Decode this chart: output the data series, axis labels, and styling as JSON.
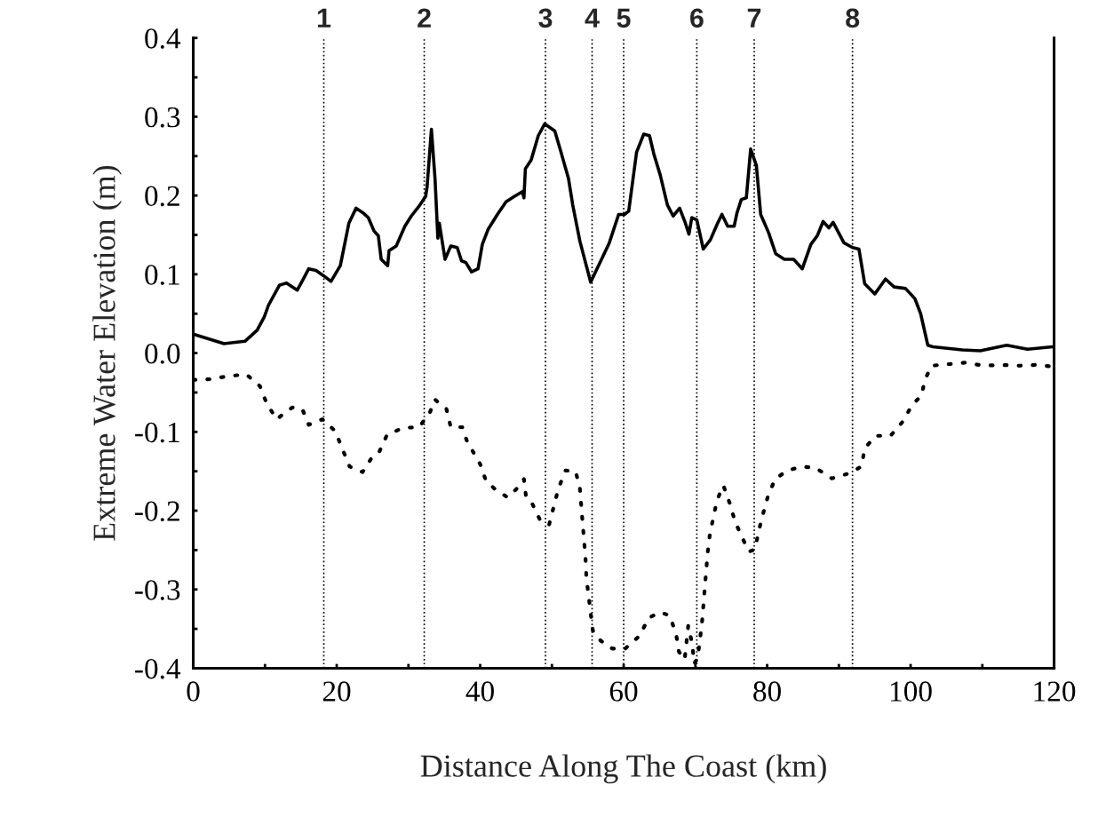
{
  "chart_data": {
    "type": "line",
    "xlabel": "Distance Along The Coast (km)",
    "ylabel": "Extreme Water Elevation (m)",
    "xlim": [
      0,
      120
    ],
    "ylim": [
      -0.4,
      0.4
    ],
    "xticks": [
      0,
      {
        "value": 10,
        "label": null
      },
      20,
      {
        "value": 30,
        "label": null
      },
      40,
      {
        "value": 50,
        "label": null
      },
      60,
      {
        "value": 70,
        "label": null
      },
      80,
      {
        "value": 90,
        "label": null
      },
      100,
      {
        "value": 110,
        "label": null
      },
      120
    ],
    "yticks": [
      {
        "value": -0.4,
        "label": "-0.4"
      },
      {
        "value": -0.35,
        "label": null
      },
      {
        "value": -0.3,
        "label": "-0.3"
      },
      {
        "value": -0.25,
        "label": null
      },
      {
        "value": -0.2,
        "label": "-0.2"
      },
      {
        "value": -0.15,
        "label": null
      },
      {
        "value": -0.1,
        "label": "-0.1"
      },
      {
        "value": -0.05,
        "label": null
      },
      {
        "value": 0.0,
        "label": "0.0"
      },
      {
        "value": 0.05,
        "label": null
      },
      {
        "value": 0.1,
        "label": "0.1"
      },
      {
        "value": 0.15,
        "label": null
      },
      {
        "value": 0.2,
        "label": "0.2"
      },
      {
        "value": 0.25,
        "label": null
      },
      {
        "value": 0.3,
        "label": "0.3"
      },
      {
        "value": 0.35,
        "label": null
      },
      {
        "value": 0.4,
        "label": "0.4"
      }
    ],
    "grid": false,
    "legend": false,
    "series": [
      {
        "color": "#000000",
        "line_style": "solid",
        "x": [
          0,
          4.3,
          7.2,
          8.9,
          9.9,
          10.5,
          12.0,
          13.0,
          14.5,
          15.1,
          16.1,
          17.1,
          18.2,
          19.2,
          20.5,
          21.7,
          22.7,
          23.8,
          24.4,
          25.2,
          25.8,
          26.2,
          27.1,
          27.3,
          28.3,
          29.5,
          30.4,
          31.6,
          32.4,
          32.6,
          33.2,
          33.7,
          34.1,
          34.3,
          35.1,
          35.9,
          36.8,
          37.4,
          38.0,
          38.8,
          39.7,
          40.3,
          41.1,
          42.4,
          43.6,
          44.8,
          45.9,
          46.1,
          46.3,
          47.1,
          48.1,
          49.0,
          50.4,
          51.2,
          52.3,
          52.9,
          53.9,
          55.4,
          58.0,
          59.3,
          60.1,
          60.7,
          61.8,
          62.8,
          63.6,
          64.2,
          65.1,
          66.1,
          66.9,
          67.8,
          68.6,
          69.1,
          69.5,
          70.2,
          71.1,
          72.1,
          73.1,
          73.7,
          74.5,
          75.4,
          75.8,
          76.4,
          77.1,
          77.7,
          78.5,
          79.1,
          80.2,
          81.2,
          82.4,
          83.7,
          84.9,
          86.1,
          87.0,
          87.8,
          88.6,
          89.2,
          90.7,
          91.9,
          92.8,
          93.6,
          95.0,
          96.5,
          97.7,
          99.3,
          100.6,
          101.4,
          102.4,
          103.1,
          107.2,
          109.7,
          113.4,
          116.3,
          119.8
        ],
        "values": [
          0.024,
          0.012,
          0.015,
          0.029,
          0.046,
          0.061,
          0.086,
          0.089,
          0.08,
          0.09,
          0.107,
          0.105,
          0.098,
          0.091,
          0.111,
          0.165,
          0.184,
          0.177,
          0.172,
          0.155,
          0.149,
          0.119,
          0.111,
          0.13,
          0.136,
          0.161,
          0.174,
          0.188,
          0.199,
          0.211,
          0.284,
          0.222,
          0.146,
          0.165,
          0.119,
          0.136,
          0.134,
          0.117,
          0.115,
          0.103,
          0.107,
          0.138,
          0.157,
          0.176,
          0.192,
          0.199,
          0.205,
          0.197,
          0.234,
          0.245,
          0.276,
          0.291,
          0.282,
          0.257,
          0.222,
          0.188,
          0.142,
          0.09,
          0.14,
          0.176,
          0.176,
          0.18,
          0.255,
          0.278,
          0.276,
          0.253,
          0.226,
          0.188,
          0.174,
          0.184,
          0.165,
          0.151,
          0.172,
          0.169,
          0.132,
          0.144,
          0.165,
          0.176,
          0.161,
          0.161,
          0.178,
          0.195,
          0.197,
          0.259,
          0.238,
          0.176,
          0.153,
          0.126,
          0.119,
          0.119,
          0.107,
          0.138,
          0.149,
          0.167,
          0.159,
          0.166,
          0.14,
          0.134,
          0.132,
          0.088,
          0.075,
          0.094,
          0.084,
          0.082,
          0.069,
          0.05,
          0.01,
          0.008,
          0.004,
          0.003,
          0.01,
          0.005,
          0.008
        ]
      },
      {
        "color": "#000000",
        "line_style": "dotted",
        "x": [
          0,
          2.5,
          5.0,
          7.4,
          9.3,
          10.2,
          11.6,
          13.8,
          15.2,
          16.1,
          18.0,
          19.8,
          20.8,
          21.8,
          23.6,
          24.8,
          25.9,
          27.0,
          29.2,
          31.5,
          33.0,
          33.7,
          35.3,
          35.9,
          37.5,
          38.2,
          38.8,
          40.0,
          40.8,
          42.1,
          43.8,
          45.0,
          46.1,
          46.4,
          47.2,
          48.3,
          49.6,
          50.9,
          51.9,
          53.3,
          53.9,
          54.1,
          54.3,
          54.5,
          54.7,
          54.8,
          55.1,
          55.4,
          55.7,
          56.8,
          58.4,
          60.1,
          62.2,
          63.5,
          65.1,
          66.4,
          67.3,
          67.7,
          68.5,
          69.0,
          69.6,
          69.8,
          70.3,
          70.9,
          71.1,
          71.3,
          71.5,
          71.7,
          72.0,
          72.5,
          73.0,
          73.9,
          74.8,
          75.5,
          76.5,
          77.5,
          78.3,
          78.8,
          79.4,
          80.1,
          81.1,
          82.8,
          84.9,
          86.8,
          89.0,
          91.3,
          93.15,
          93.6,
          95.1,
          97.2,
          98.9,
          100.2,
          101.5,
          102.0,
          102.9,
          105.3,
          107.7,
          110.1,
          112.6,
          115.1,
          117.4,
          119.8
        ],
        "values": [
          -0.034,
          -0.033,
          -0.029,
          -0.027,
          -0.042,
          -0.063,
          -0.084,
          -0.069,
          -0.071,
          -0.091,
          -0.084,
          -0.099,
          -0.122,
          -0.144,
          -0.151,
          -0.134,
          -0.126,
          -0.104,
          -0.095,
          -0.094,
          -0.075,
          -0.059,
          -0.071,
          -0.094,
          -0.094,
          -0.113,
          -0.122,
          -0.141,
          -0.162,
          -0.173,
          -0.183,
          -0.173,
          -0.16,
          -0.183,
          -0.19,
          -0.211,
          -0.218,
          -0.172,
          -0.149,
          -0.15,
          -0.172,
          -0.195,
          -0.218,
          -0.24,
          -0.263,
          -0.285,
          -0.307,
          -0.33,
          -0.352,
          -0.365,
          -0.375,
          -0.376,
          -0.359,
          -0.336,
          -0.329,
          -0.333,
          -0.356,
          -0.379,
          -0.389,
          -0.346,
          -0.371,
          -0.394,
          -0.388,
          -0.344,
          -0.322,
          -0.299,
          -0.277,
          -0.254,
          -0.231,
          -0.209,
          -0.187,
          -0.168,
          -0.191,
          -0.213,
          -0.234,
          -0.252,
          -0.249,
          -0.227,
          -0.205,
          -0.182,
          -0.16,
          -0.149,
          -0.144,
          -0.146,
          -0.159,
          -0.153,
          -0.144,
          -0.121,
          -0.105,
          -0.105,
          -0.087,
          -0.066,
          -0.054,
          -0.034,
          -0.016,
          -0.014,
          -0.012,
          -0.016,
          -0.015,
          -0.016,
          -0.015,
          -0.017
        ]
      }
    ],
    "ref_lines": [
      {
        "axis": "x",
        "value": 18.2,
        "line_style": "dotted",
        "color": "#000000"
      },
      {
        "axis": "x",
        "value": 32.2,
        "line_style": "dotted",
        "color": "#000000"
      },
      {
        "axis": "x",
        "value": 49.1,
        "line_style": "dotted",
        "color": "#000000"
      },
      {
        "axis": "x",
        "value": 55.6,
        "line_style": "dotted",
        "color": "#000000"
      },
      {
        "axis": "x",
        "value": 60.0,
        "line_style": "dotted",
        "color": "#000000"
      },
      {
        "axis": "x",
        "value": 70.2,
        "line_style": "dotted",
        "color": "#000000"
      },
      {
        "axis": "x",
        "value": 78.2,
        "line_style": "dotted",
        "color": "#000000"
      },
      {
        "axis": "x",
        "value": 91.9,
        "line_style": "dotted",
        "color": "#000000"
      }
    ],
    "annotations": [
      {
        "text": "1",
        "x": 18.2,
        "y": 0.4
      },
      {
        "text": "2",
        "x": 32.2,
        "y": 0.4
      },
      {
        "text": "3",
        "x": 49.1,
        "y": 0.4
      },
      {
        "text": "4",
        "x": 55.6,
        "y": 0.4
      },
      {
        "text": "5",
        "x": 60.0,
        "y": 0.4
      },
      {
        "text": "6",
        "x": 70.2,
        "y": 0.4
      },
      {
        "text": "7",
        "x": 78.2,
        "y": 0.4
      },
      {
        "text": "8",
        "x": 91.9,
        "y": 0.4
      }
    ]
  }
}
